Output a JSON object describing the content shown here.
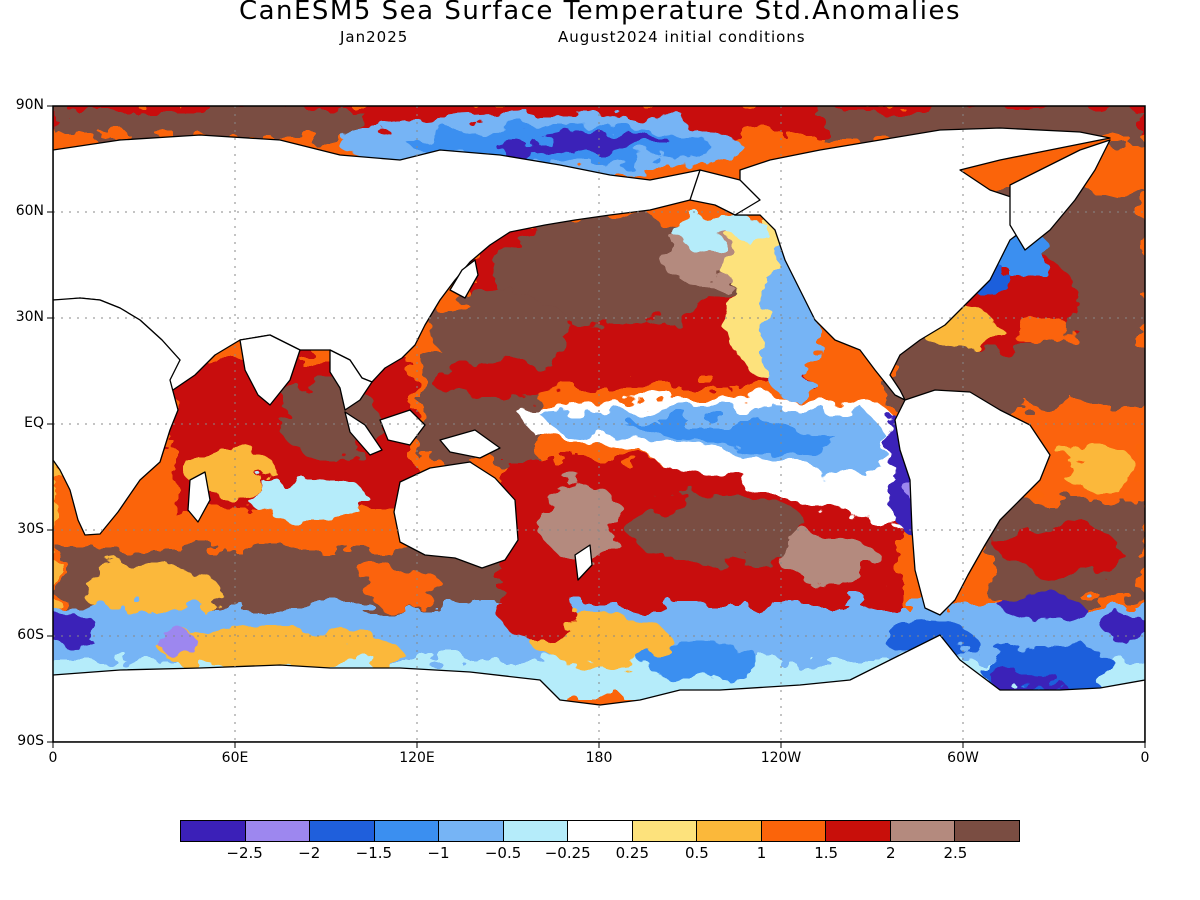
{
  "header": {
    "title": "CanESM5 Sea Surface Temperature Std.Anomalies",
    "target_month": "Jan2025",
    "init_conditions": "August2024 initial conditions"
  },
  "map": {
    "projection": "equirectangular",
    "lon_range": [
      0,
      360
    ],
    "lat_range": [
      -90,
      90
    ],
    "lat_labels": [
      "90N",
      "60N",
      "30N",
      "EQ",
      "30S",
      "60S",
      "90S"
    ],
    "lon_labels": [
      "0",
      "60E",
      "120E",
      "180",
      "120W",
      "60W",
      "0"
    ],
    "land_color": "#ffffff",
    "grid": "dotted"
  },
  "colorbar": {
    "colors": [
      "#3b20b8",
      "#9d87ef",
      "#1f5fdc",
      "#3b8ff0",
      "#76b4f5",
      "#b5ecfa",
      "#ffffff",
      "#fde27c",
      "#fbb83a",
      "#fb640a",
      "#c80f0a",
      "#b48a7e",
      "#7a4d42"
    ],
    "labels": [
      "−2.5",
      "−2",
      "−1.5",
      "−1",
      "−0.5",
      "−0.25",
      "0.25",
      "0.5",
      "1",
      "1.5",
      "2",
      "2.5"
    ]
  }
}
